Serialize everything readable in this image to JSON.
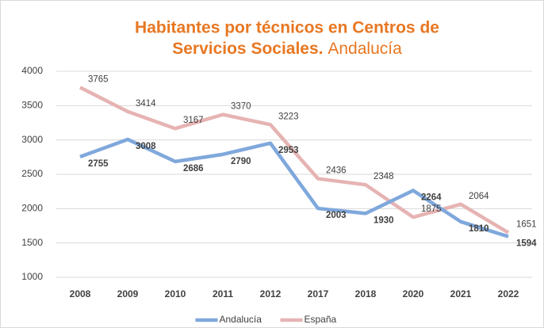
{
  "chart_data": {
    "type": "line",
    "title_line1": "Habitantes por técnicos en Centros de",
    "title_line2": "Servicios Sociales.",
    "subtitle": "Andalucía",
    "categories": [
      "2008",
      "2009",
      "2010",
      "2011",
      "2012",
      "2017",
      "2018",
      "2020",
      "2021",
      "2022"
    ],
    "series": [
      {
        "name": "Andalucía",
        "color": "#7fa8dc",
        "values": [
          2755,
          3008,
          2686,
          2790,
          2953,
          2003,
          1930,
          2264,
          1810,
          1594
        ]
      },
      {
        "name": "España",
        "color": "#e6b3b3",
        "values": [
          3765,
          3414,
          3167,
          3370,
          3223,
          2436,
          2348,
          1875,
          2064,
          1651
        ]
      }
    ],
    "ylim": [
      1000,
      4000
    ],
    "yticks": [
      1000,
      1500,
      2000,
      2500,
      3000,
      3500,
      4000
    ],
    "grid": true,
    "legend": "bottom"
  }
}
